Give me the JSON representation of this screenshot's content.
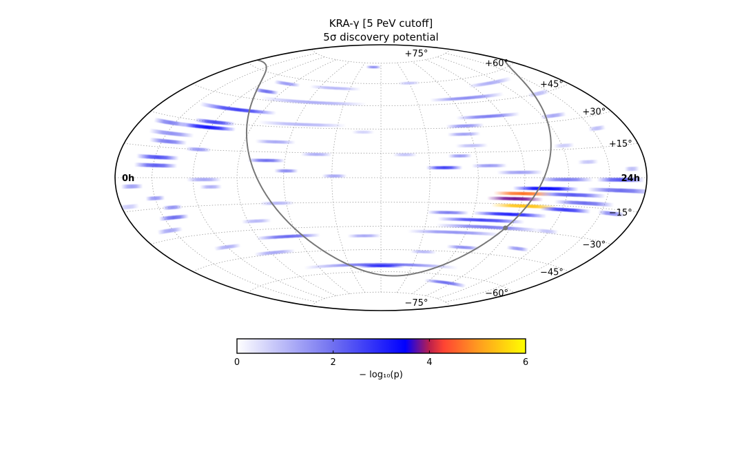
{
  "chart_data": {
    "type": "heatmap",
    "projection": "hammer-aitoff",
    "title": "KRA-γ [5 PeV cutoff]",
    "subtitle": "5σ discovery potential",
    "ra_labels": [
      {
        "text": "24h",
        "ra_h": 24
      },
      {
        "text": "0h",
        "ra_h": 0
      }
    ],
    "dec_labels": [
      {
        "text": "+75°",
        "dec": 75
      },
      {
        "text": "+60°",
        "dec": 60
      },
      {
        "text": "+45°",
        "dec": 45
      },
      {
        "text": "+30°",
        "dec": 30
      },
      {
        "text": "+15°",
        "dec": 15
      },
      {
        "text": "−15°",
        "dec": -15
      },
      {
        "text": "−30°",
        "dec": -30
      },
      {
        "text": "−45°",
        "dec": -45
      },
      {
        "text": "−60°",
        "dec": -60
      },
      {
        "text": "−75°",
        "dec": -75
      }
    ],
    "grid": true,
    "grid_ra_step_h": 2,
    "grid_dec_step": 15,
    "colorbar": {
      "label": "− log₁₀(p)",
      "min": 0,
      "max": 6,
      "ticks": [
        "0",
        "2",
        "4",
        "6"
      ],
      "colors": [
        {
          "v": 0,
          "c": "#ffffff"
        },
        {
          "v": 2,
          "c": "#7070f0"
        },
        {
          "v": 3.5,
          "c": "#0000ff"
        },
        {
          "v": 4,
          "c": "#bb1f4c"
        },
        {
          "v": 4.3,
          "c": "#ff4433"
        },
        {
          "v": 5,
          "c": "#ff9a20"
        },
        {
          "v": 6,
          "c": "#ffff00"
        }
      ]
    },
    "galactic_plane_color": "#777777",
    "galactic_center": {
      "ra_h": 17.76,
      "dec": -28.94
    },
    "hotspots": [
      {
        "dec": 72,
        "ra_h": 11.2,
        "width_h": 1.6,
        "value": 1.6
      },
      {
        "dec": 60,
        "ra_h": 14.0,
        "width_h": 1.5,
        "value": 0.8
      },
      {
        "dec": 56,
        "ra_h": 5.6,
        "width_h": 2.0,
        "value": 1.4
      },
      {
        "dec": 56,
        "ra_h": 9.0,
        "width_h": 3.4,
        "value": 1.0
      },
      {
        "dec": 55,
        "ra_h": 19.5,
        "width_h": 3.5,
        "value": 1.1
      },
      {
        "dec": 50,
        "ra_h": 5.0,
        "width_h": 1.7,
        "value": 2.0
      },
      {
        "dec": 48,
        "ra_h": 17.0,
        "width_h": 4.5,
        "value": 1.6
      },
      {
        "dec": 46,
        "ra_h": 8.2,
        "width_h": 6.0,
        "value": 1.1
      },
      {
        "dec": 45,
        "ra_h": 21.3,
        "width_h": 1.6,
        "value": 0.9
      },
      {
        "dec": 38,
        "ra_h": 4.5,
        "width_h": 4.5,
        "value": 2.6
      },
      {
        "dec": 36,
        "ra_h": 17.3,
        "width_h": 3.3,
        "value": 1.8
      },
      {
        "dec": 33,
        "ra_h": 20.6,
        "width_h": 1.5,
        "value": 1.2
      },
      {
        "dec": 32,
        "ra_h": 8.3,
        "width_h": 4.2,
        "value": 1.0
      },
      {
        "dec": 31,
        "ra_h": 15.9,
        "width_h": 1.8,
        "value": 1.5
      },
      {
        "dec": 30,
        "ra_h": 4.0,
        "width_h": 2.2,
        "value": 2.5
      },
      {
        "dec": 28,
        "ra_h": 11.2,
        "width_h": 1.0,
        "value": 0.6
      },
      {
        "dec": 27,
        "ra_h": 3.8,
        "width_h": 3.0,
        "value": 3.2
      },
      {
        "dec": 27,
        "ra_h": 1.7,
        "width_h": 2.0,
        "value": 1.7
      },
      {
        "dec": 26,
        "ra_h": 15.7,
        "width_h": 1.5,
        "value": 1.3
      },
      {
        "dec": 24,
        "ra_h": 22.3,
        "width_h": 1.0,
        "value": 0.9
      },
      {
        "dec": 22,
        "ra_h": 2.2,
        "width_h": 2.5,
        "value": 1.5
      },
      {
        "dec": 21,
        "ra_h": 7.4,
        "width_h": 1.8,
        "value": 1.2
      },
      {
        "dec": 19,
        "ra_h": 15.9,
        "width_h": 1.4,
        "value": 0.9
      },
      {
        "dec": 18,
        "ra_h": 2.3,
        "width_h": 2.0,
        "value": 1.8
      },
      {
        "dec": 17,
        "ra_h": 20.1,
        "width_h": 1.0,
        "value": 0.7
      },
      {
        "dec": 15,
        "ra_h": 4.0,
        "width_h": 1.2,
        "value": 1.4
      },
      {
        "dec": 14,
        "ra_h": 13.0,
        "width_h": 1.0,
        "value": 0.8
      },
      {
        "dec": 14,
        "ra_h": 9.3,
        "width_h": 1.3,
        "value": 1.1
      },
      {
        "dec": 13,
        "ra_h": 15.3,
        "width_h": 1.0,
        "value": 1.4
      },
      {
        "dec": 10,
        "ra_h": 2.1,
        "width_h": 2.2,
        "value": 2.4
      },
      {
        "dec": 10,
        "ra_h": 7.2,
        "width_h": 1.6,
        "value": 2.0
      },
      {
        "dec": 8,
        "ra_h": 21.0,
        "width_h": 1.0,
        "value": 0.8
      },
      {
        "dec": 7,
        "ra_h": 16.5,
        "width_h": 1.5,
        "value": 1.4
      },
      {
        "dec": 6,
        "ra_h": 2.1,
        "width_h": 2.2,
        "value": 2.2
      },
      {
        "dec": 6,
        "ra_h": 14.6,
        "width_h": 1.5,
        "value": 2.6
      },
      {
        "dec": 4,
        "ra_h": 23.2,
        "width_h": 0.8,
        "value": 0.9
      },
      {
        "dec": 4,
        "ra_h": 8.1,
        "width_h": 1.0,
        "value": 1.6
      },
      {
        "dec": 3,
        "ra_h": 17.8,
        "width_h": 2.0,
        "value": 1.3
      },
      {
        "dec": 1,
        "ra_h": 10.1,
        "width_h": 1.0,
        "value": 1.2
      },
      {
        "dec": -1,
        "ra_h": 19.9,
        "width_h": 2.5,
        "value": 1.8
      },
      {
        "dec": -1,
        "ra_h": 22.6,
        "width_h": 2.5,
        "value": 2.3
      },
      {
        "dec": -1,
        "ra_h": 4.5,
        "width_h": 1.6,
        "value": 1.2
      },
      {
        "dec": -4,
        "ra_h": 0.9,
        "width_h": 1.2,
        "value": 1.3
      },
      {
        "dec": -5,
        "ra_h": 4.8,
        "width_h": 1.0,
        "value": 1.1
      },
      {
        "dec": -6,
        "ra_h": 19.0,
        "width_h": 3.0,
        "value": 3.4
      },
      {
        "dec": -6,
        "ra_h": 22.7,
        "width_h": 3.5,
        "value": 2.0
      },
      {
        "dec": -9,
        "ra_h": 18.0,
        "width_h": 2.6,
        "value": 4.7
      },
      {
        "dec": -9,
        "ra_h": 20.3,
        "width_h": 3.2,
        "value": 2.3
      },
      {
        "dec": -10,
        "ra_h": 2.0,
        "width_h": 1.0,
        "value": 1.4
      },
      {
        "dec": -12,
        "ra_h": 17.7,
        "width_h": 2.5,
        "value": 3.8
      },
      {
        "dec": -13,
        "ra_h": 21.0,
        "width_h": 3.0,
        "value": 2.0
      },
      {
        "dec": -13,
        "ra_h": 0.4,
        "width_h": 1.2,
        "value": 0.7
      },
      {
        "dec": -15,
        "ra_h": 2.7,
        "width_h": 1.0,
        "value": 1.5
      },
      {
        "dec": -15,
        "ra_h": 7.6,
        "width_h": 1.5,
        "value": 1.0
      },
      {
        "dec": -16,
        "ra_h": 18.2,
        "width_h": 3.0,
        "value": 5.4
      },
      {
        "dec": -17,
        "ra_h": 20.2,
        "width_h": 2.5,
        "value": 2.7
      },
      {
        "dec": -17,
        "ra_h": 22.6,
        "width_h": 1.5,
        "value": 1.6
      },
      {
        "dec": -20,
        "ra_h": 2.5,
        "width_h": 1.6,
        "value": 2.0
      },
      {
        "dec": -21,
        "ra_h": 17.7,
        "width_h": 3.4,
        "value": 3.0
      },
      {
        "dec": -21,
        "ra_h": 14.9,
        "width_h": 1.8,
        "value": 1.8
      },
      {
        "dec": -25,
        "ra_h": 16.5,
        "width_h": 4.0,
        "value": 2.6
      },
      {
        "dec": -25,
        "ra_h": 6.4,
        "width_h": 1.4,
        "value": 1.0
      },
      {
        "dec": -26,
        "ra_h": 1.8,
        "width_h": 1.5,
        "value": 1.2
      },
      {
        "dec": -29,
        "ra_h": 17.0,
        "width_h": 5.0,
        "value": 1.8
      },
      {
        "dec": -29,
        "ra_h": 19.9,
        "width_h": 1.2,
        "value": 0.8
      },
      {
        "dec": -33,
        "ra_h": 15.5,
        "width_h": 4.5,
        "value": 1.5
      },
      {
        "dec": -35,
        "ra_h": 7.5,
        "width_h": 3.2,
        "value": 2.1
      },
      {
        "dec": -36,
        "ra_h": 11.2,
        "width_h": 1.6,
        "value": 1.2
      },
      {
        "dec": -38,
        "ra_h": 4.0,
        "width_h": 1.6,
        "value": 1.1
      },
      {
        "dec": -40,
        "ra_h": 19.2,
        "width_h": 1.3,
        "value": 1.4
      },
      {
        "dec": -42,
        "ra_h": 16.3,
        "width_h": 1.8,
        "value": 1.6
      },
      {
        "dec": -44,
        "ra_h": 6.2,
        "width_h": 2.4,
        "value": 1.2
      },
      {
        "dec": -46,
        "ra_h": 14.3,
        "width_h": 1.4,
        "value": 1.0
      },
      {
        "dec": -55,
        "ra_h": 12.0,
        "width_h": 10.0,
        "value": 2.0
      },
      {
        "dec": -56,
        "ra_h": 12.0,
        "width_h": 3.0,
        "value": 2.9
      },
      {
        "dec": -65,
        "ra_h": 17.6,
        "width_h": 4.0,
        "value": 2.0
      }
    ]
  }
}
